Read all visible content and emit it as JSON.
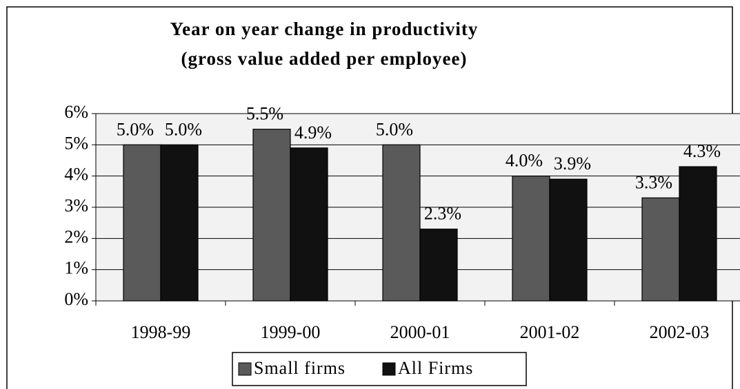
{
  "chart_data": {
    "type": "bar",
    "title": "Year on year change in productivity",
    "subtitle": "(gross value added per employee)",
    "categories": [
      "1998-99",
      "1999-00",
      "2000-01",
      "2001-02",
      "2002-03"
    ],
    "series": [
      {
        "name": "Small firms",
        "color": "#5a5a5a",
        "values": [
          5.0,
          5.5,
          5.0,
          4.0,
          3.3
        ],
        "value_labels": [
          "5.0%",
          "5.5%",
          "5.0%",
          "4.0%",
          "3.3%"
        ]
      },
      {
        "name": "All Firms",
        "color": "#111111",
        "values": [
          5.0,
          4.9,
          2.3,
          3.9,
          4.3
        ],
        "value_labels": [
          "5.0%",
          "4.9%",
          "2.3%",
          "3.9%",
          "4.3%"
        ]
      }
    ],
    "ylim": [
      0,
      6
    ],
    "yticks": [
      {
        "value": 0,
        "label": "0%"
      },
      {
        "value": 1,
        "label": "1%"
      },
      {
        "value": 2,
        "label": "2%"
      },
      {
        "value": 3,
        "label": "3%"
      },
      {
        "value": 4,
        "label": "4%"
      },
      {
        "value": 5,
        "label": "5%"
      },
      {
        "value": 6,
        "label": "6%"
      }
    ],
    "grid": true,
    "legend": "bottom"
  }
}
